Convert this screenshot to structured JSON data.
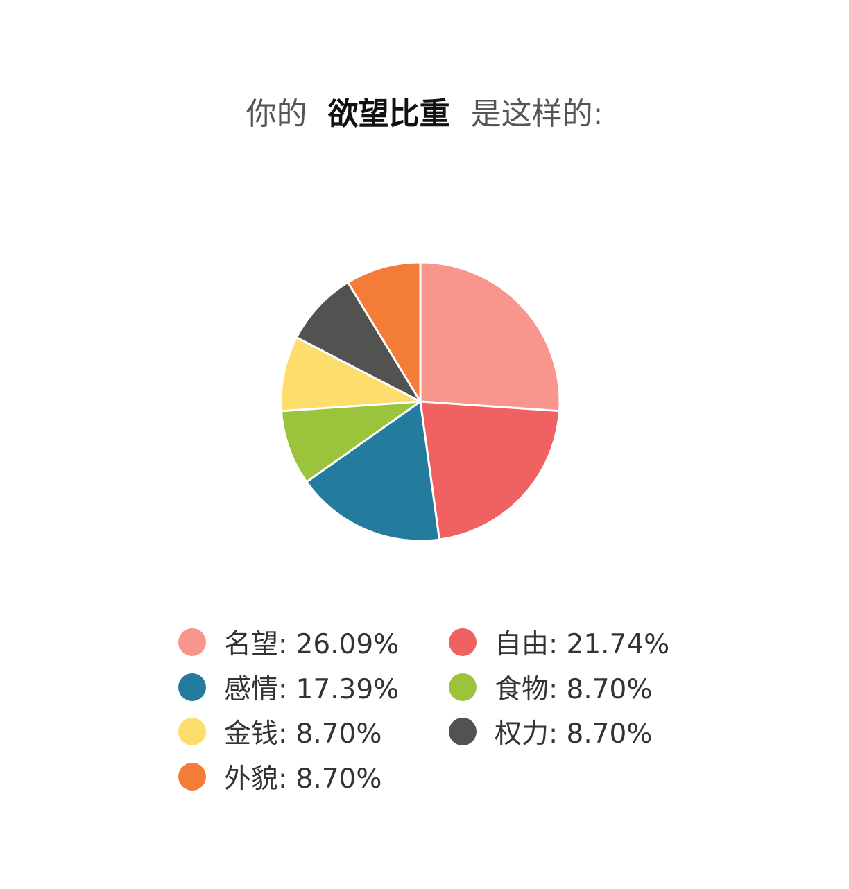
{
  "title": {
    "prefix": "你的",
    "highlight": "欲望比重",
    "suffix": "是这样的:"
  },
  "chart_data": {
    "type": "pie",
    "start": "top",
    "direction": "clockwise",
    "legend_placement": "bottom",
    "slices": [
      {
        "name": "名望",
        "value": 26.09,
        "label": "名望: 26.09%",
        "color": "#F8958C"
      },
      {
        "name": "自由",
        "value": 21.74,
        "label": "自由: 21.74%",
        "color": "#F06262"
      },
      {
        "name": "感情",
        "value": 17.39,
        "label": "感情: 17.39%",
        "color": "#237B9E"
      },
      {
        "name": "食物",
        "value": 8.7,
        "label": "食物: 8.70%",
        "color": "#9BC33C"
      },
      {
        "name": "金钱",
        "value": 8.7,
        "label": "金钱: 8.70%",
        "color": "#FDDD6B"
      },
      {
        "name": "权力",
        "value": 8.7,
        "label": "权力: 8.70%",
        "color": "#525250"
      },
      {
        "name": "外貌",
        "value": 8.7,
        "label": "外貌: 8.70%",
        "color": "#F27C38"
      }
    ]
  }
}
